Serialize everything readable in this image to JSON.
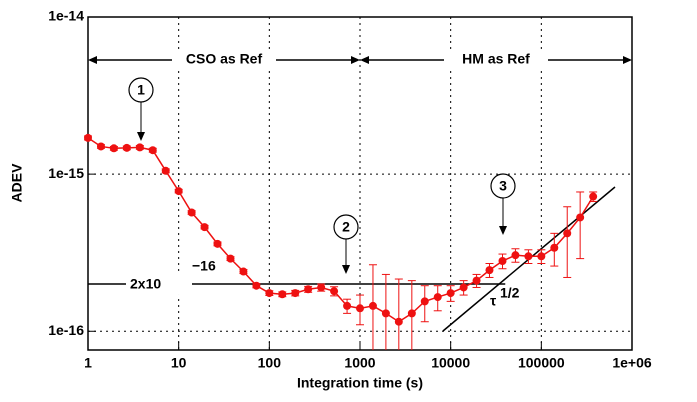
{
  "chart_data": {
    "type": "line",
    "x_label": "Integration time (s)",
    "y_label": "ADEV",
    "log_x": true,
    "log_y": true,
    "grid": true,
    "xlim": [
      1,
      1000000
    ],
    "ylim": [
      7.6e-17,
      1e-14
    ],
    "xticks": [
      1,
      10,
      100,
      1000,
      10000,
      100000,
      {
        "value": 1000000,
        "label": "1e+06"
      }
    ],
    "yticks": [
      {
        "value": 1e-14,
        "label": "1e-14"
      },
      {
        "value": 1e-15,
        "label": "1e-15"
      },
      {
        "value": 1e-16,
        "label": "1e-16"
      }
    ],
    "x": [
      1,
      1.39,
      1.93,
      2.68,
      3.73,
      5.18,
      7.2,
      10,
      13.9,
      19.3,
      26.8,
      37.3,
      51.8,
      72,
      100,
      139,
      193,
      268,
      373,
      518,
      720,
      1000,
      1390,
      1930,
      2680,
      3730,
      5180,
      7200,
      10000,
      13900,
      19300,
      26800,
      37300,
      51800,
      72000,
      100000,
      139000,
      193000,
      268000,
      373000
    ],
    "series": [
      {
        "color": "#ee1111",
        "values": [
          1.7e-15,
          1.5e-15,
          1.46e-15,
          1.47e-15,
          1.48e-15,
          1.42e-15,
          1.05e-15,
          7.8e-16,
          5.7e-16,
          4.6e-16,
          3.6e-16,
          2.9e-16,
          2.4e-16,
          1.95e-16,
          1.75e-16,
          1.72e-16,
          1.75e-16,
          1.85e-16,
          1.9e-16,
          1.8e-16,
          1.45e-16,
          1.4e-16,
          1.45e-16,
          1.3e-16,
          1.15e-16,
          1.3e-16,
          1.55e-16,
          1.65e-16,
          1.75e-16,
          1.9e-16,
          2.1e-16,
          2.45e-16,
          2.8e-16,
          3.05e-16,
          3e-16,
          3e-16,
          3.4e-16,
          4.2e-16,
          5.3e-16,
          7.2e-16
        ],
        "errors": [
          5e-17,
          4e-17,
          4e-17,
          4e-17,
          4e-17,
          4e-17,
          3e-17,
          2e-17,
          1.5e-17,
          1.2e-17,
          1e-17,
          8e-18,
          7e-18,
          6e-18,
          6e-18,
          6e-18,
          7e-18,
          8e-18,
          1e-17,
          1.2e-17,
          1.5e-17,
          3e-17,
          1.2e-16,
          1e-16,
          1e-16,
          8e-17,
          4e-17,
          3e-17,
          2e-17,
          2e-17,
          2e-17,
          2.5e-17,
          3e-17,
          3e-17,
          3e-17,
          3e-17,
          8e-17,
          2e-16,
          2.4e-16,
          5e-17
        ]
      }
    ],
    "reference": {
      "value": 2e-16,
      "x": [
        1,
        40000
      ],
      "label": "2x10",
      "exponent": "−16"
    },
    "regions": [
      {
        "label": "CSO as Ref",
        "x": [
          1,
          1000
        ]
      },
      {
        "label": "HM as Ref",
        "x": [
          1000,
          1000000
        ]
      }
    ],
    "markers": [
      "1",
      "2",
      "3"
    ],
    "slope_label": "τ",
    "slope_exponent": "1/2"
  }
}
